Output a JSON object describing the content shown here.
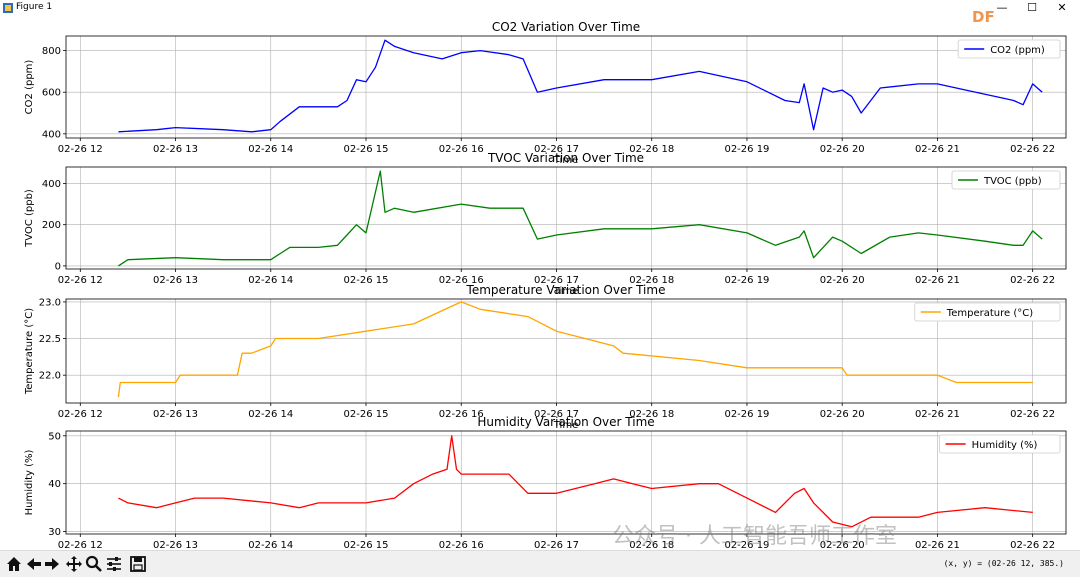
{
  "window": {
    "title": "Figure 1",
    "minimize": "—",
    "maximize": "☐",
    "close": "✕"
  },
  "watermark": {
    "brand": "DF",
    "wechat": "公众号 · 人工智能吾师工作室"
  },
  "status": {
    "coords": "(x, y) = (02-26 12, 385.)"
  },
  "toolbar": [
    "home-icon",
    "back-icon",
    "forward-icon",
    "pan-icon",
    "zoom-icon",
    "configure-icon",
    "save-icon"
  ],
  "chart_data": [
    {
      "type": "line",
      "title": "CO2 Variation Over Time",
      "xlabel": "Time",
      "ylabel": "CO2 (ppm)",
      "ylim": [
        380,
        870
      ],
      "yticks": [
        400,
        600,
        800
      ],
      "color": "#0000ff",
      "legend": "top-right",
      "grid": true,
      "series": [
        {
          "name": "CO2 (ppm)",
          "x": [
            12.4,
            12.8,
            13.0,
            13.5,
            13.8,
            14.0,
            14.1,
            14.3,
            14.7,
            14.8,
            14.9,
            15.0,
            15.1,
            15.2,
            15.3,
            15.5,
            15.8,
            16.0,
            16.2,
            16.5,
            16.65,
            16.8,
            17.0,
            17.5,
            18.0,
            18.5,
            18.8,
            19.0,
            19.4,
            19.55,
            19.6,
            19.7,
            19.8,
            19.9,
            20.0,
            20.1,
            20.2,
            20.4,
            20.8,
            21.0,
            21.3,
            21.5,
            21.7,
            21.8,
            21.9,
            22.0,
            22.1
          ],
          "y": [
            410,
            420,
            430,
            420,
            410,
            420,
            460,
            530,
            530,
            560,
            660,
            650,
            720,
            850,
            820,
            790,
            760,
            790,
            800,
            780,
            760,
            600,
            620,
            660,
            660,
            700,
            670,
            650,
            560,
            550,
            640,
            420,
            620,
            600,
            610,
            580,
            500,
            620,
            640,
            640,
            610,
            590,
            570,
            560,
            540,
            640,
            600
          ]
        }
      ]
    },
    {
      "type": "line",
      "title": "TVOC Variation Over Time",
      "xlabel": "Time",
      "ylabel": "TVOC (ppb)",
      "ylim": [
        -15,
        480
      ],
      "yticks": [
        0,
        200,
        400
      ],
      "color": "#008000",
      "legend": "top-right",
      "grid": true,
      "series": [
        {
          "name": "TVOC (ppb)",
          "x": [
            12.4,
            12.5,
            13.0,
            13.5,
            14.0,
            14.1,
            14.2,
            14.5,
            14.7,
            14.8,
            14.9,
            15.0,
            15.15,
            15.2,
            15.3,
            15.5,
            16.0,
            16.3,
            16.5,
            16.65,
            16.8,
            17.0,
            17.5,
            18.0,
            18.5,
            19.0,
            19.3,
            19.55,
            19.6,
            19.7,
            19.9,
            20.0,
            20.2,
            20.5,
            20.8,
            21.0,
            21.5,
            21.8,
            21.9,
            22.0,
            22.1
          ],
          "y": [
            0,
            30,
            40,
            30,
            30,
            60,
            90,
            90,
            100,
            150,
            200,
            160,
            460,
            260,
            280,
            260,
            300,
            280,
            280,
            280,
            130,
            150,
            180,
            180,
            200,
            160,
            100,
            140,
            170,
            40,
            140,
            120,
            60,
            140,
            160,
            150,
            120,
            100,
            100,
            170,
            130
          ]
        }
      ]
    },
    {
      "type": "line",
      "title": "Temperature Variation Over Time",
      "xlabel": "Time",
      "ylabel": "Temperature (°C)",
      "ylim": [
        21.62,
        23.04
      ],
      "yticks": [
        22.0,
        22.5,
        23.0
      ],
      "color": "#ffa500",
      "legend": "top-right",
      "grid": true,
      "series": [
        {
          "name": "Temperature (°C)",
          "x": [
            12.4,
            12.42,
            13.0,
            13.05,
            13.55,
            13.65,
            13.7,
            13.8,
            14.0,
            14.05,
            14.5,
            15.0,
            15.5,
            16.0,
            16.2,
            16.7,
            17.0,
            17.3,
            17.6,
            17.7,
            18.5,
            19.0,
            20.0,
            20.05,
            20.3,
            21.0,
            21.2,
            22.0
          ],
          "y": [
            21.7,
            21.9,
            21.9,
            22.0,
            22.0,
            22.0,
            22.3,
            22.3,
            22.4,
            22.5,
            22.5,
            22.6,
            22.7,
            23.0,
            22.9,
            22.8,
            22.6,
            22.5,
            22.4,
            22.3,
            22.2,
            22.1,
            22.1,
            22.0,
            22.0,
            22.0,
            21.9,
            21.9
          ]
        }
      ]
    },
    {
      "type": "line",
      "title": "Humidity Variation Over Time",
      "xlabel": "Time",
      "ylabel": "Humidity (%)",
      "ylim": [
        29.5,
        51
      ],
      "yticks": [
        30,
        40,
        50
      ],
      "color": "#ff0000",
      "legend": "top-right",
      "grid": true,
      "series": [
        {
          "name": "Humidity (%)",
          "x": [
            12.4,
            12.5,
            12.8,
            13.0,
            13.2,
            13.5,
            14.0,
            14.3,
            14.5,
            15.0,
            15.3,
            15.5,
            15.7,
            15.85,
            15.9,
            15.95,
            16.0,
            16.5,
            16.7,
            16.8,
            17.0,
            17.4,
            17.6,
            17.8,
            18.0,
            18.5,
            18.7,
            19.0,
            19.3,
            19.5,
            19.6,
            19.7,
            19.9,
            20.1,
            20.3,
            20.5,
            20.8,
            21.0,
            21.5,
            22.0
          ],
          "y": [
            37,
            36,
            35,
            36,
            37,
            37,
            36,
            35,
            36,
            36,
            37,
            40,
            42,
            43,
            50,
            43,
            42,
            42,
            38,
            38,
            38,
            40,
            41,
            40,
            39,
            40,
            40,
            37,
            34,
            38,
            39,
            36,
            32,
            31,
            33,
            33,
            33,
            34,
            35,
            34
          ]
        }
      ]
    }
  ],
  "xaxis": {
    "ticks": [
      12,
      13,
      14,
      15,
      16,
      17,
      18,
      19,
      20,
      21,
      22
    ],
    "tick_labels": [
      "02-26 12",
      "02-26 13",
      "02-26 14",
      "02-26 15",
      "02-26 16",
      "02-26 17",
      "02-26 18",
      "02-26 19",
      "02-26 20",
      "02-26 21",
      "02-26 22"
    ],
    "xlim": [
      11.85,
      22.35
    ]
  }
}
